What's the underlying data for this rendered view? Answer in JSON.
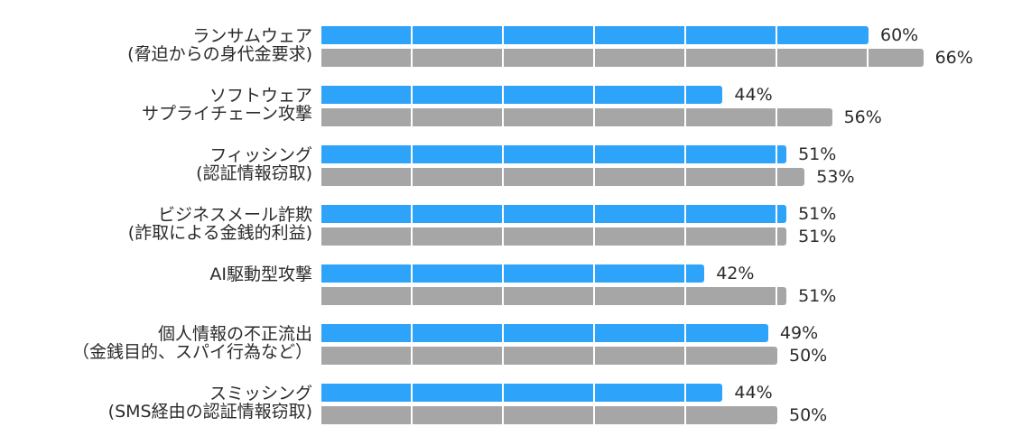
{
  "page": {
    "background_color": "#ffffff",
    "text_color": "#2b2b2b"
  },
  "chart_data": {
    "type": "bar",
    "orientation": "horizontal",
    "title": "",
    "xlabel": "",
    "ylabel": "",
    "value_unit": "%",
    "axis_range": [
      0,
      100
    ],
    "segment_divider_interval": 10,
    "legend": "none",
    "grid": "segmented-bars",
    "series": [
      {
        "key": "blue",
        "color": "#2ea3fa"
      },
      {
        "key": "gray",
        "color": "#a6a6a6"
      }
    ],
    "rows": [
      {
        "label_line1": "ランサムウェア",
        "label_line2": "(脅迫からの身代金要求)",
        "blue": 60,
        "gray": 66,
        "blue_label": "60%",
        "gray_label": "66%"
      },
      {
        "label_line1": "ソフトウェア",
        "label_line2": "サプライチェーン攻撃",
        "blue": 44,
        "gray": 56,
        "blue_label": "44%",
        "gray_label": "56%"
      },
      {
        "label_line1": "フィッシング",
        "label_line2": "(認証情報窃取)",
        "blue": 51,
        "gray": 53,
        "blue_label": "51%",
        "gray_label": "53%"
      },
      {
        "label_line1": "ビジネスメール詐欺",
        "label_line2": "(詐取による金銭的利益)",
        "blue": 51,
        "gray": 51,
        "blue_label": "51%",
        "gray_label": "51%"
      },
      {
        "label_line1": "AI駆動型攻撃",
        "label_line2": "",
        "blue": 42,
        "gray": 51,
        "blue_label": "42%",
        "gray_label": "51%"
      },
      {
        "label_line1": "個人情報の不正流出",
        "label_line2": "（金銭目的、スパイ行為など）",
        "blue": 49,
        "gray": 50,
        "blue_label": "49%",
        "gray_label": "50%"
      },
      {
        "label_line1": "スミッシング",
        "label_line2": "(SMS経由の認証情報窃取)",
        "blue": 44,
        "gray": 50,
        "blue_label": "44%",
        "gray_label": "50%"
      }
    ]
  }
}
